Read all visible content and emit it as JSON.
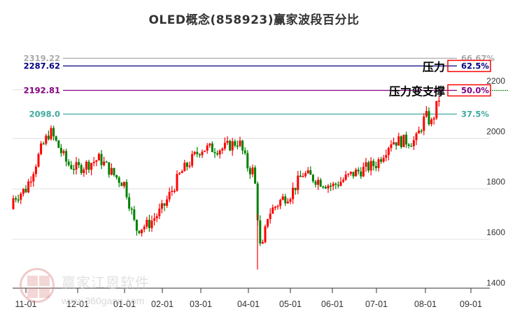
{
  "title": "OLED概念(858923)赢家波段百分比",
  "watermark": {
    "brand": "赢家江恩软件",
    "url": "www.360gann.com",
    "logo_chars": [
      "江",
      "赢",
      "恩",
      "家"
    ]
  },
  "colors": {
    "up": "#ff0000",
    "down": "#008000",
    "grid": "#e0e0e0",
    "axis": "#333333",
    "level_6667": "#aaaaaa",
    "level_625": "#000080",
    "level_50": "#800080",
    "level_375": "#3fa9a0",
    "highlight_box": "#ff0000",
    "current_price_line": "#008000"
  },
  "chart_data": {
    "type": "candlestick",
    "title": "OLED概念(858923)赢家波段百分比",
    "xlabel": "",
    "ylabel": "",
    "ylim": [
      1400,
      2330
    ],
    "grid": true,
    "y_ticks": [
      1400,
      1600,
      1800,
      2000,
      2200
    ],
    "x_ticks": [
      "11-01",
      "12-01",
      "01-01",
      "02-01",
      "03-01",
      "04-01",
      "05-01",
      "06-01",
      "07-01",
      "08-01",
      "09-01"
    ],
    "levels": [
      {
        "price": "2319.22",
        "pct": "66.67%",
        "color": "#aaaaaa"
      },
      {
        "price": "2287.62",
        "pct": "62.5%",
        "color": "#000080",
        "annotation": "压力",
        "boxed": true
      },
      {
        "price": "2192.81",
        "pct": "50.0%",
        "color": "#800080",
        "annotation": "压力变支撑",
        "boxed": true
      },
      {
        "price": "2098.0",
        "pct": "37.5%",
        "color": "#3fa9a0"
      }
    ],
    "approx_series_close": [
      {
        "date": "10-15",
        "close": 1720
      },
      {
        "date": "11-01",
        "close": 1800
      },
      {
        "date": "11-10",
        "close": 1960
      },
      {
        "date": "11-15",
        "close": 2030
      },
      {
        "date": "11-25",
        "close": 1900
      },
      {
        "date": "12-01",
        "close": 1880
      },
      {
        "date": "12-15",
        "close": 1920
      },
      {
        "date": "12-25",
        "close": 1850
      },
      {
        "date": "01-01",
        "close": 1820
      },
      {
        "date": "01-10",
        "close": 1640
      },
      {
        "date": "01-20",
        "close": 1660
      },
      {
        "date": "02-01",
        "close": 1720
      },
      {
        "date": "02-15",
        "close": 1860
      },
      {
        "date": "03-01",
        "close": 1960
      },
      {
        "date": "03-15",
        "close": 1960
      },
      {
        "date": "03-25",
        "close": 1990
      },
      {
        "date": "04-01",
        "close": 1880
      },
      {
        "date": "04-05",
        "close": 1870
      },
      {
        "date": "04-10",
        "close": 1530
      },
      {
        "date": "04-15",
        "close": 1700
      },
      {
        "date": "04-25",
        "close": 1760
      },
      {
        "date": "05-01",
        "close": 1780
      },
      {
        "date": "05-10",
        "close": 1860
      },
      {
        "date": "06-01",
        "close": 1810
      },
      {
        "date": "06-15",
        "close": 1860
      },
      {
        "date": "07-01",
        "close": 1900
      },
      {
        "date": "07-10",
        "close": 1990
      },
      {
        "date": "07-25",
        "close": 1990
      },
      {
        "date": "08-01",
        "close": 2090
      },
      {
        "date": "08-05",
        "close": 2060
      },
      {
        "date": "08-10",
        "close": 2160
      }
    ],
    "last_price_marker": 2192.81
  }
}
